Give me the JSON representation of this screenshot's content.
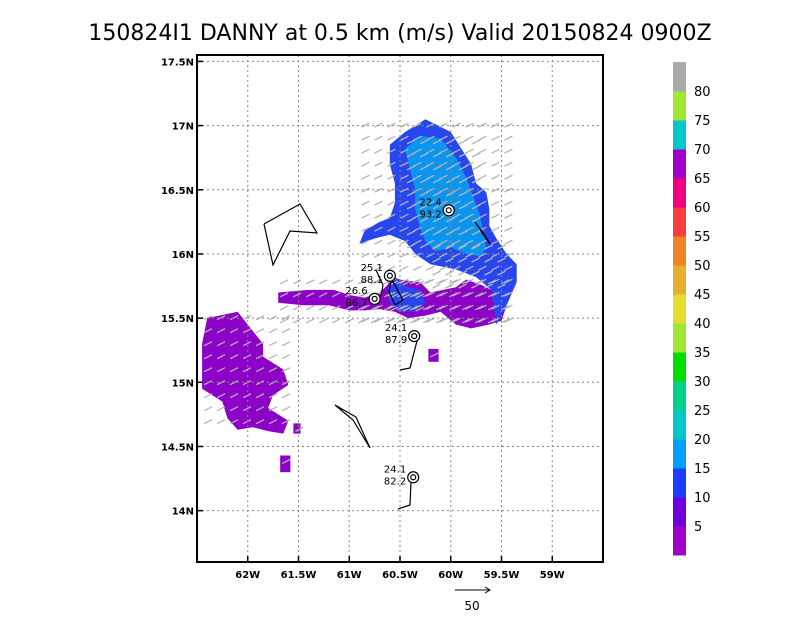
{
  "chart_data": {
    "type": "heatmap",
    "title": "150824I1 DANNY at 0.5 km (m/s) Valid 20150824  0900Z",
    "xlim": [
      -62.5,
      -58.5
    ],
    "ylim": [
      13.6,
      17.55
    ],
    "x_ticks": [
      {
        "value": -62,
        "label": "62W"
      },
      {
        "value": -61.5,
        "label": "61.5W"
      },
      {
        "value": -61,
        "label": "61W"
      },
      {
        "value": -60.5,
        "label": "60.5W"
      },
      {
        "value": -60,
        "label": "60W"
      },
      {
        "value": -59.5,
        "label": "59.5W"
      },
      {
        "value": -59,
        "label": "59W"
      }
    ],
    "y_ticks": [
      {
        "value": 14,
        "label": "14N"
      },
      {
        "value": 14.5,
        "label": "14.5N"
      },
      {
        "value": 15,
        "label": "15N"
      },
      {
        "value": 15.5,
        "label": "15.5N"
      },
      {
        "value": 16,
        "label": "16N"
      },
      {
        "value": 16.5,
        "label": "16.5N"
      },
      {
        "value": 17,
        "label": "17N"
      },
      {
        "value": 17.5,
        "label": "17.5N"
      }
    ],
    "grid": true,
    "colorbar": {
      "labels": [
        "5",
        "10",
        "15",
        "20",
        "25",
        "30",
        "35",
        "40",
        "45",
        "50",
        "55",
        "60",
        "65",
        "70",
        "75",
        "80"
      ],
      "colors": [
        "#a000c8",
        "#6e00dc",
        "#1e3cff",
        "#00a0ff",
        "#00c8c8",
        "#00d28c",
        "#00dc00",
        "#a0e632",
        "#e6dc32",
        "#e6af2d",
        "#f08228",
        "#fa3c3c",
        "#f00082",
        "#a000c8",
        "#00c8c8",
        "#a0e632",
        "#aaaaaa"
      ]
    },
    "wind_regions": [
      {
        "class": "5-10",
        "color": "#8c00c8",
        "polygon": [
          [
            -62.4,
            15.5
          ],
          [
            -62.1,
            15.55
          ],
          [
            -61.95,
            15.4
          ],
          [
            -61.85,
            15.3
          ],
          [
            -61.85,
            15.2
          ],
          [
            -61.65,
            15.1
          ],
          [
            -61.6,
            14.98
          ],
          [
            -61.75,
            14.9
          ],
          [
            -61.8,
            14.8
          ],
          [
            -61.6,
            14.7
          ],
          [
            -61.65,
            14.6
          ],
          [
            -61.8,
            14.62
          ],
          [
            -61.95,
            14.65
          ],
          [
            -62.1,
            14.63
          ],
          [
            -62.2,
            14.72
          ],
          [
            -62.25,
            14.85
          ],
          [
            -62.45,
            14.95
          ],
          [
            -62.45,
            15.3
          ]
        ]
      },
      {
        "class": "5-10",
        "color": "#8c00c8",
        "polygon": [
          [
            -61.7,
            15.7
          ],
          [
            -61.4,
            15.72
          ],
          [
            -61.15,
            15.72
          ],
          [
            -61.0,
            15.68
          ],
          [
            -60.85,
            15.66
          ],
          [
            -60.7,
            15.7
          ],
          [
            -60.62,
            15.76
          ],
          [
            -60.6,
            15.83
          ],
          [
            -60.5,
            15.8
          ],
          [
            -60.3,
            15.78
          ],
          [
            -60.2,
            15.7
          ],
          [
            -59.95,
            15.74
          ],
          [
            -59.85,
            15.8
          ],
          [
            -59.7,
            15.76
          ],
          [
            -59.55,
            15.7
          ],
          [
            -59.45,
            15.6
          ],
          [
            -59.5,
            15.48
          ],
          [
            -59.62,
            15.45
          ],
          [
            -59.8,
            15.42
          ],
          [
            -59.95,
            15.45
          ],
          [
            -60.1,
            15.55
          ],
          [
            -60.25,
            15.52
          ],
          [
            -60.42,
            15.5
          ],
          [
            -60.55,
            15.55
          ],
          [
            -60.7,
            15.57
          ],
          [
            -60.85,
            15.56
          ],
          [
            -61.0,
            15.56
          ],
          [
            -61.2,
            15.6
          ],
          [
            -61.45,
            15.6
          ],
          [
            -61.7,
            15.62
          ]
        ]
      },
      {
        "class": "5-10",
        "color": "#8c00c8",
        "polygon": [
          [
            -60.15,
            16.05
          ],
          [
            -60.0,
            16.1
          ],
          [
            -59.85,
            16.05
          ],
          [
            -59.7,
            16.0
          ],
          [
            -59.55,
            15.9
          ],
          [
            -59.45,
            15.7
          ],
          [
            -59.6,
            15.75
          ],
          [
            -59.8,
            15.85
          ],
          [
            -60.0,
            15.9
          ],
          [
            -60.2,
            15.95
          ]
        ]
      },
      {
        "class": "10-15",
        "color": "#2846f0",
        "polygon": [
          [
            -60.6,
            16.85
          ],
          [
            -60.45,
            16.95
          ],
          [
            -60.25,
            17.05
          ],
          [
            -60.0,
            16.95
          ],
          [
            -59.8,
            16.7
          ],
          [
            -59.75,
            16.55
          ],
          [
            -59.65,
            16.48
          ],
          [
            -59.62,
            16.35
          ],
          [
            -59.62,
            16.22
          ],
          [
            -59.55,
            16.12
          ],
          [
            -59.45,
            16.0
          ],
          [
            -59.35,
            15.92
          ],
          [
            -59.35,
            15.78
          ],
          [
            -59.45,
            15.6
          ],
          [
            -59.55,
            15.45
          ],
          [
            -59.6,
            15.72
          ],
          [
            -59.75,
            15.82
          ],
          [
            -59.95,
            15.88
          ],
          [
            -60.2,
            15.92
          ],
          [
            -60.35,
            16.0
          ],
          [
            -60.45,
            16.1
          ],
          [
            -60.6,
            16.15
          ],
          [
            -60.75,
            16.12
          ],
          [
            -60.9,
            16.08
          ],
          [
            -60.85,
            16.18
          ],
          [
            -60.7,
            16.25
          ],
          [
            -60.6,
            16.28
          ],
          [
            -60.55,
            16.4
          ],
          [
            -60.55,
            16.55
          ],
          [
            -60.6,
            16.7
          ]
        ]
      },
      {
        "class": "10-15",
        "color": "#2846f0",
        "polygon": [
          [
            -60.55,
            15.82
          ],
          [
            -60.45,
            15.75
          ],
          [
            -60.3,
            15.72
          ],
          [
            -60.25,
            15.62
          ],
          [
            -60.35,
            15.55
          ],
          [
            -60.5,
            15.55
          ],
          [
            -60.6,
            15.62
          ],
          [
            -60.62,
            15.72
          ]
        ]
      },
      {
        "class": "15-20",
        "color": "#0a96f0",
        "polygon": [
          [
            -60.45,
            16.82
          ],
          [
            -60.3,
            16.92
          ],
          [
            -60.1,
            16.9
          ],
          [
            -59.95,
            16.75
          ],
          [
            -59.85,
            16.6
          ],
          [
            -59.78,
            16.45
          ],
          [
            -59.72,
            16.32
          ],
          [
            -59.68,
            16.18
          ],
          [
            -59.65,
            16.05
          ],
          [
            -59.7,
            15.98
          ],
          [
            -59.85,
            16.0
          ],
          [
            -60.0,
            16.05
          ],
          [
            -60.15,
            16.02
          ],
          [
            -60.25,
            16.1
          ],
          [
            -60.3,
            16.2
          ],
          [
            -60.35,
            16.35
          ],
          [
            -60.35,
            16.5
          ],
          [
            -60.4,
            16.65
          ]
        ]
      },
      {
        "class": "isolated",
        "color": "#8c00c8",
        "polygon": [
          [
            -61.55,
            14.68
          ],
          [
            -61.48,
            14.68
          ],
          [
            -61.48,
            14.6
          ],
          [
            -61.55,
            14.6
          ]
        ]
      },
      {
        "class": "isolated",
        "color": "#8c00c8",
        "polygon": [
          [
            -61.68,
            14.43
          ],
          [
            -61.58,
            14.43
          ],
          [
            -61.58,
            14.3
          ],
          [
            -61.68,
            14.3
          ]
        ]
      },
      {
        "class": "isolated",
        "color": "#8c00c8",
        "polygon": [
          [
            -60.22,
            15.26
          ],
          [
            -60.12,
            15.26
          ],
          [
            -60.12,
            15.16
          ],
          [
            -60.22,
            15.16
          ]
        ]
      }
    ],
    "observations": [
      {
        "label_top": "22.4",
        "label_bottom": "93.2",
        "lon": -60.02,
        "lat": 16.34
      },
      {
        "label_top": "25.1",
        "label_bottom": "88.1",
        "lon": -60.6,
        "lat": 15.83
      },
      {
        "label_top": "26.6",
        "label_bottom": "86.7",
        "lon": -60.75,
        "lat": 15.65
      },
      {
        "label_top": "24.1",
        "label_bottom": "87.9",
        "lon": -60.36,
        "lat": 15.36
      },
      {
        "label_top": "24.1",
        "label_bottom": "82.2",
        "lon": -60.37,
        "lat": 14.26
      }
    ],
    "scale_vector_label": "50"
  }
}
